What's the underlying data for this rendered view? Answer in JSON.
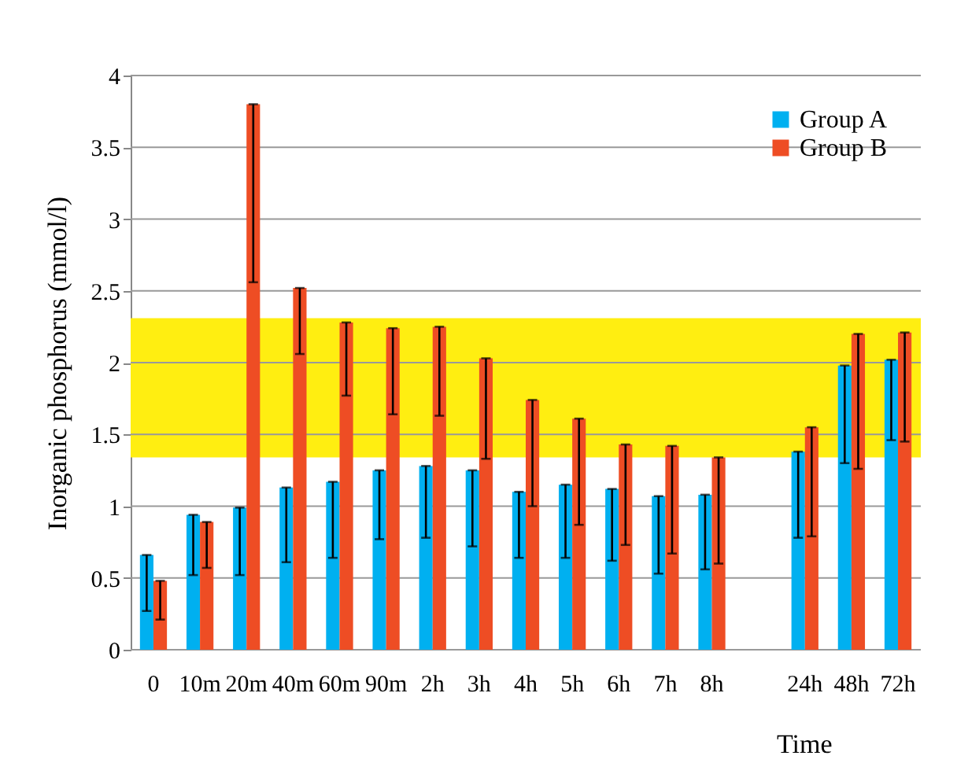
{
  "chart_data": {
    "type": "bar",
    "xlabel": "Time",
    "ylabel": "Inorganic phosphorus (mmol/l)",
    "categories": [
      "0",
      "10m",
      "20m",
      "40m",
      "60m",
      "90m",
      "2h",
      "3h",
      "4h",
      "5h",
      "6h",
      "7h",
      "8h",
      null,
      "24h",
      "48h",
      "72h"
    ],
    "series": [
      {
        "name": "Group A",
        "color": "#00b0f0",
        "values": [
          0.66,
          0.94,
          0.99,
          1.13,
          1.17,
          1.25,
          1.28,
          1.25,
          1.1,
          1.15,
          1.12,
          1.07,
          1.08,
          null,
          1.38,
          1.98,
          2.02
        ],
        "errors": [
          [
            0.27,
            0.66
          ],
          [
            0.52,
            0.94
          ],
          [
            0.52,
            0.99
          ],
          [
            0.61,
            1.13
          ],
          [
            0.64,
            1.17
          ],
          [
            0.77,
            1.25
          ],
          [
            0.78,
            1.28
          ],
          [
            0.72,
            1.25
          ],
          [
            0.64,
            1.1
          ],
          [
            0.64,
            1.15
          ],
          [
            0.62,
            1.12
          ],
          [
            0.53,
            1.07
          ],
          [
            0.56,
            1.08
          ],
          null,
          [
            0.78,
            1.38
          ],
          [
            1.3,
            1.98
          ],
          [
            1.46,
            2.02
          ]
        ]
      },
      {
        "name": "Group B",
        "color": "#ee4d24",
        "values": [
          0.48,
          0.89,
          3.8,
          2.52,
          2.28,
          2.24,
          2.25,
          2.03,
          1.74,
          1.61,
          1.43,
          1.42,
          1.34,
          null,
          1.55,
          2.2,
          2.21
        ],
        "errors": [
          [
            0.21,
            0.48
          ],
          [
            0.57,
            0.89
          ],
          [
            2.56,
            3.8
          ],
          [
            2.06,
            2.52
          ],
          [
            1.77,
            2.28
          ],
          [
            1.64,
            2.24
          ],
          [
            1.63,
            2.25
          ],
          [
            1.33,
            2.03
          ],
          [
            1.0,
            1.74
          ],
          [
            0.87,
            1.61
          ],
          [
            0.73,
            1.43
          ],
          [
            0.67,
            1.42
          ],
          [
            0.6,
            1.34
          ],
          null,
          [
            0.79,
            1.55
          ],
          [
            1.26,
            2.2
          ],
          [
            1.45,
            2.21
          ]
        ]
      }
    ],
    "ylim": [
      0,
      4
    ],
    "yticks": [
      0,
      0.5,
      1,
      1.5,
      2,
      2.5,
      3,
      3.5,
      4
    ],
    "bands": [
      {
        "axis": "y",
        "from": 1.34,
        "to": 2.31,
        "color": "#ffee11"
      }
    ],
    "grid": "y",
    "legend": "top right"
  }
}
